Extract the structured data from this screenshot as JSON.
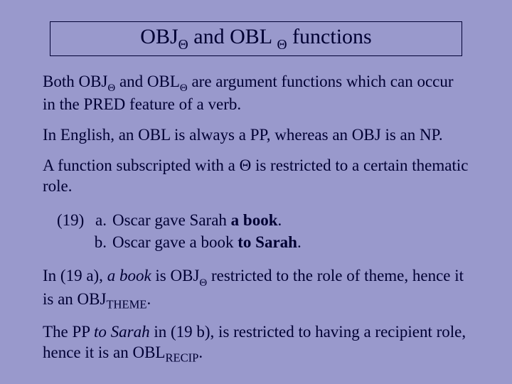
{
  "colors": {
    "background": "#9999cc",
    "text": "#000033",
    "title_border": "#000033"
  },
  "typography": {
    "family": "Times New Roman",
    "title_fontsize_pt": 24,
    "body_fontsize_pt": 18
  },
  "title": {
    "part1": "OBJ",
    "theta1": "Θ",
    "part2": " and OBL ",
    "theta2": "Θ",
    "part3": "  functions"
  },
  "p1": {
    "seg1": "Both OBJ",
    "theta1": "Θ",
    "seg2": " and OBL",
    "theta2": "Θ",
    "seg3": " are argument functions which can occur in the PRED feature of a verb."
  },
  "p2": "In English, an OBL is always a PP, whereas an OBJ is an NP.",
  "p3": "A function subscripted with a Θ is restricted to a certain thematic role.",
  "examples": {
    "number": "(19)",
    "a": {
      "letter": "a.",
      "pre": "Oscar gave Sarah ",
      "bold": "a book",
      "post": "."
    },
    "b": {
      "letter": "b.",
      "pre": "Oscar gave a book ",
      "bold": "to Sarah",
      "post": "."
    }
  },
  "p4": {
    "seg1": "In (19 a), ",
    "it1": "a book",
    "seg2": " is OBJ",
    "theta": "Θ",
    "seg3": " restricted to the role of theme, hence it is an OBJ",
    "sc": "THEME",
    "seg4": "."
  },
  "p5": {
    "seg1": "The PP ",
    "it1": "to Sarah",
    "seg2": " in (19 b), is restricted to having a recipient role, hence it is an OBL",
    "sc": "RECIP",
    "seg3": "."
  }
}
